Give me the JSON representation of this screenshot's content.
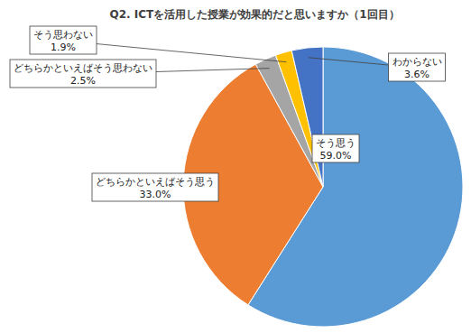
{
  "chart_data": {
    "type": "pie",
    "title": "Q2. ICTを活用した授業が効果的だと思いますか（1回目）",
    "categories": [
      "そう思う",
      "どちらかといえばそう思う",
      "どちらかといえばそう思わない",
      "そう思わない",
      "わからない"
    ],
    "values": [
      59.0,
      33.0,
      2.5,
      1.9,
      3.6
    ],
    "value_labels": [
      "59.0%",
      "33.0%",
      "2.5%",
      "1.9%",
      "3.6%"
    ],
    "colors": [
      "#5b9bd5",
      "#ed7d31",
      "#a5a5a5",
      "#ffc000",
      "#4472c4"
    ],
    "data_labels": true
  }
}
